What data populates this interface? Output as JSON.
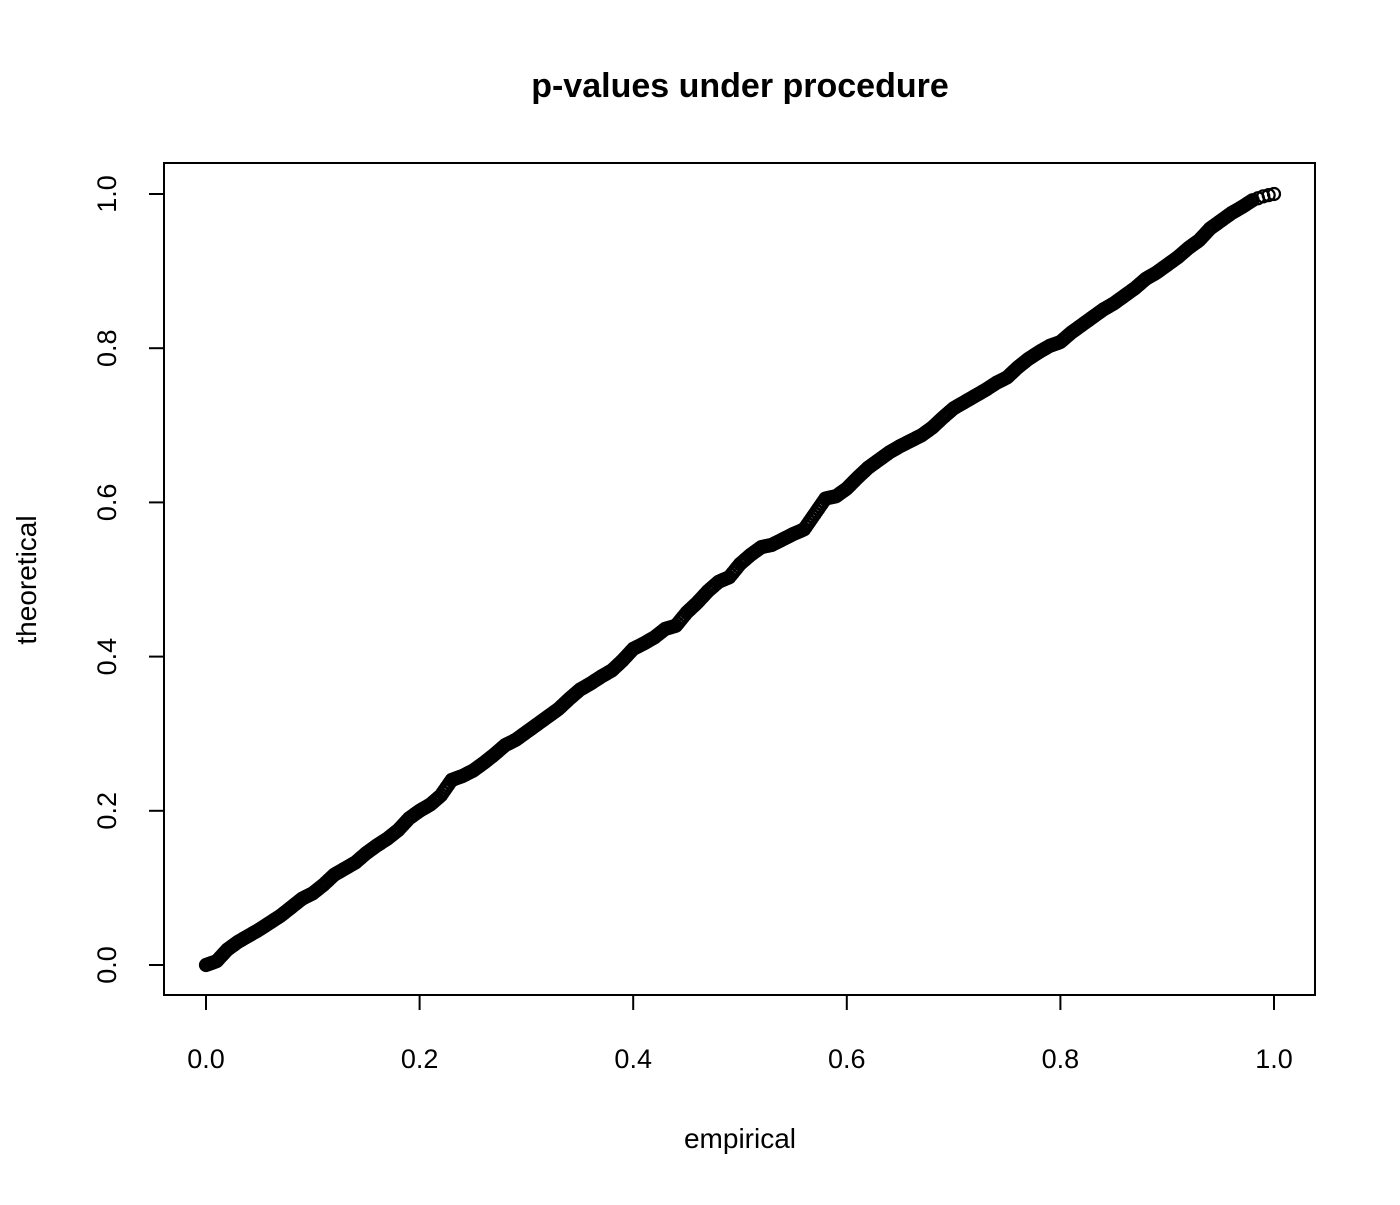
{
  "chart_data": {
    "type": "scatter",
    "title": "p-values under procedure",
    "xlabel": "empirical",
    "ylabel": "theoretical",
    "xlim": [
      0,
      1
    ],
    "ylim": [
      0,
      1
    ],
    "xticks": [
      "0.0",
      "0.2",
      "0.4",
      "0.6",
      "0.8",
      "1.0"
    ],
    "yticks": [
      "0.0",
      "0.2",
      "0.4",
      "0.6",
      "0.8",
      "1.0"
    ],
    "grid": false,
    "marker": "open-circle",
    "color": "#000000",
    "points": [
      [
        0,
        0
      ],
      [
        0.01,
        0.005
      ],
      [
        0.02,
        0.02
      ],
      [
        0.03,
        0.03
      ],
      [
        0.04,
        0.038
      ],
      [
        0.05,
        0.046
      ],
      [
        0.06,
        0.055
      ],
      [
        0.07,
        0.064
      ],
      [
        0.08,
        0.075
      ],
      [
        0.09,
        0.086
      ],
      [
        0.1,
        0.093
      ],
      [
        0.11,
        0.104
      ],
      [
        0.12,
        0.117
      ],
      [
        0.13,
        0.125
      ],
      [
        0.14,
        0.133
      ],
      [
        0.15,
        0.145
      ],
      [
        0.16,
        0.155
      ],
      [
        0.17,
        0.164
      ],
      [
        0.18,
        0.175
      ],
      [
        0.19,
        0.19
      ],
      [
        0.2,
        0.2
      ],
      [
        0.21,
        0.208
      ],
      [
        0.22,
        0.22
      ],
      [
        0.23,
        0.24
      ],
      [
        0.24,
        0.245
      ],
      [
        0.25,
        0.252
      ],
      [
        0.26,
        0.262
      ],
      [
        0.27,
        0.273
      ],
      [
        0.28,
        0.285
      ],
      [
        0.29,
        0.292
      ],
      [
        0.3,
        0.302
      ],
      [
        0.31,
        0.312
      ],
      [
        0.32,
        0.322
      ],
      [
        0.33,
        0.332
      ],
      [
        0.34,
        0.345
      ],
      [
        0.35,
        0.357
      ],
      [
        0.36,
        0.365
      ],
      [
        0.37,
        0.374
      ],
      [
        0.38,
        0.382
      ],
      [
        0.39,
        0.395
      ],
      [
        0.4,
        0.41
      ],
      [
        0.41,
        0.417
      ],
      [
        0.42,
        0.425
      ],
      [
        0.43,
        0.436
      ],
      [
        0.44,
        0.44
      ],
      [
        0.45,
        0.457
      ],
      [
        0.46,
        0.47
      ],
      [
        0.47,
        0.485
      ],
      [
        0.48,
        0.497
      ],
      [
        0.49,
        0.503
      ],
      [
        0.5,
        0.52
      ],
      [
        0.51,
        0.532
      ],
      [
        0.52,
        0.542
      ],
      [
        0.53,
        0.545
      ],
      [
        0.54,
        0.552
      ],
      [
        0.55,
        0.559
      ],
      [
        0.56,
        0.565
      ],
      [
        0.57,
        0.585
      ],
      [
        0.58,
        0.605
      ],
      [
        0.59,
        0.608
      ],
      [
        0.6,
        0.618
      ],
      [
        0.61,
        0.632
      ],
      [
        0.62,
        0.645
      ],
      [
        0.63,
        0.655
      ],
      [
        0.64,
        0.665
      ],
      [
        0.65,
        0.673
      ],
      [
        0.66,
        0.68
      ],
      [
        0.67,
        0.687
      ],
      [
        0.68,
        0.697
      ],
      [
        0.69,
        0.71
      ],
      [
        0.7,
        0.722
      ],
      [
        0.71,
        0.73
      ],
      [
        0.72,
        0.738
      ],
      [
        0.73,
        0.746
      ],
      [
        0.74,
        0.755
      ],
      [
        0.75,
        0.762
      ],
      [
        0.76,
        0.775
      ],
      [
        0.77,
        0.786
      ],
      [
        0.78,
        0.795
      ],
      [
        0.79,
        0.803
      ],
      [
        0.8,
        0.808
      ],
      [
        0.81,
        0.82
      ],
      [
        0.82,
        0.83
      ],
      [
        0.83,
        0.84
      ],
      [
        0.84,
        0.85
      ],
      [
        0.85,
        0.858
      ],
      [
        0.86,
        0.868
      ],
      [
        0.87,
        0.878
      ],
      [
        0.88,
        0.89
      ],
      [
        0.89,
        0.898
      ],
      [
        0.9,
        0.908
      ],
      [
        0.91,
        0.918
      ],
      [
        0.92,
        0.93
      ],
      [
        0.93,
        0.94
      ],
      [
        0.94,
        0.955
      ],
      [
        0.95,
        0.965
      ],
      [
        0.96,
        0.975
      ],
      [
        0.97,
        0.983
      ],
      [
        0.98,
        0.992
      ],
      [
        0.99,
        0.997
      ],
      [
        1.0,
        1.0
      ]
    ]
  }
}
